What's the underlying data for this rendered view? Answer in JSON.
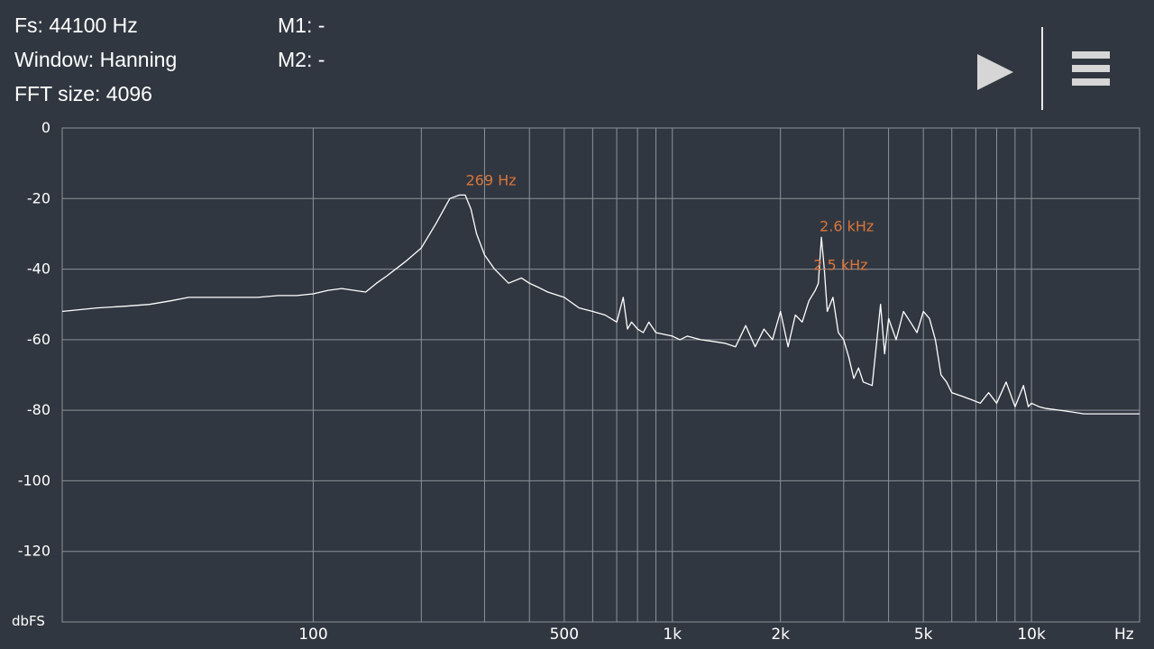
{
  "status": {
    "fs": "Fs: 44100 Hz",
    "window": "Window: Hanning",
    "fft_size": "FFT size: 4096",
    "m1": "M1: -",
    "m2": "M2: -"
  },
  "toolbar": {
    "play_icon": "play-icon",
    "menu_icon": "hamburger-menu-icon"
  },
  "colors": {
    "background": "#313740",
    "grid": "#8c9299",
    "trace": "#ffffff",
    "peak_label": "#d9763a",
    "text": "#ffffff"
  },
  "chart_data": {
    "type": "line",
    "title": "",
    "xlabel": "Hz",
    "ylabel": "dbFS",
    "x_scale": "log",
    "xlim": [
      20,
      20000
    ],
    "ylim": [
      -140,
      0
    ],
    "grid": true,
    "x_tick_labels": [
      {
        "value": 100,
        "label": "100"
      },
      {
        "value": 500,
        "label": "500"
      },
      {
        "value": 1000,
        "label": "1k"
      },
      {
        "value": 2000,
        "label": "2k"
      },
      {
        "value": 5000,
        "label": "5k"
      },
      {
        "value": 10000,
        "label": "10k"
      }
    ],
    "x_gridlines": [
      100,
      200,
      300,
      400,
      500,
      600,
      700,
      800,
      900,
      1000,
      2000,
      3000,
      4000,
      5000,
      6000,
      7000,
      8000,
      9000,
      10000,
      20000
    ],
    "y_ticks": [
      0,
      -20,
      -40,
      -60,
      -80,
      -100,
      -120
    ],
    "y_tick_labels": [
      "0",
      "-20",
      "-40",
      "-60",
      "-80",
      "-100",
      "-120"
    ],
    "peak_labels": [
      {
        "freq": 269,
        "db": -16,
        "text": "269 Hz"
      },
      {
        "freq": 2600,
        "db": -29,
        "text": "2.6  kHz"
      },
      {
        "freq": 2500,
        "db": -40,
        "text": "2.5  kHz"
      }
    ],
    "series": [
      {
        "x": [
          20,
          25,
          30,
          35,
          40,
          45,
          50,
          60,
          70,
          80,
          90,
          100,
          110,
          120,
          130,
          140,
          150,
          160,
          180,
          200,
          220,
          240,
          255,
          265,
          275,
          285,
          300,
          320,
          350,
          380,
          400,
          420,
          450,
          500,
          550,
          600,
          650,
          700,
          730,
          750,
          770,
          800,
          830,
          860,
          900,
          950,
          1000,
          1050,
          1100,
          1200,
          1300,
          1400,
          1500,
          1600,
          1700,
          1800,
          1900,
          2000,
          2100,
          2200,
          2300,
          2400,
          2500,
          2550,
          2600,
          2650,
          2700,
          2800,
          2900,
          3000,
          3100,
          3200,
          3300,
          3400,
          3600,
          3800,
          3900,
          4000,
          4200,
          4400,
          4600,
          4800,
          5000,
          5200,
          5400,
          5600,
          5800,
          6000,
          6400,
          6800,
          7200,
          7600,
          8000,
          8500,
          9000,
          9500,
          9800,
          10000,
          10500,
          11000,
          12000,
          13000,
          14000,
          15000,
          16000,
          18000,
          20000
        ],
        "y": [
          -52,
          -51,
          -50.5,
          -50,
          -49,
          -48,
          -48,
          -48,
          -48,
          -47.5,
          -47.5,
          -47,
          -46,
          -45.5,
          -46,
          -46.5,
          -44,
          -42,
          -38,
          -34,
          -27,
          -20,
          -19,
          -19,
          -23,
          -30,
          -36,
          -40,
          -44,
          -42.5,
          -44,
          -45,
          -46.5,
          -48,
          -51,
          -52,
          -53,
          -55,
          -48,
          -57,
          -55,
          -57,
          -58,
          -55,
          -58,
          -58.5,
          -59,
          -60,
          -59,
          -60,
          -60.5,
          -61,
          -62,
          -56,
          -62,
          -57,
          -60,
          -52,
          -62,
          -53,
          -55,
          -49,
          -46,
          -44,
          -31,
          -40,
          -52,
          -48,
          -58,
          -60,
          -65,
          -71,
          -68,
          -72,
          -73,
          -50,
          -64,
          -54,
          -60,
          -52,
          -55,
          -58,
          -52,
          -54,
          -60,
          -70,
          -72,
          -75,
          -76,
          -77,
          -78,
          -75,
          -78,
          -72,
          -79,
          -73,
          -79,
          -78,
          -79,
          -79.5,
          -80,
          -80.5,
          -81,
          -81,
          -81,
          -81,
          -81
        ]
      }
    ]
  }
}
